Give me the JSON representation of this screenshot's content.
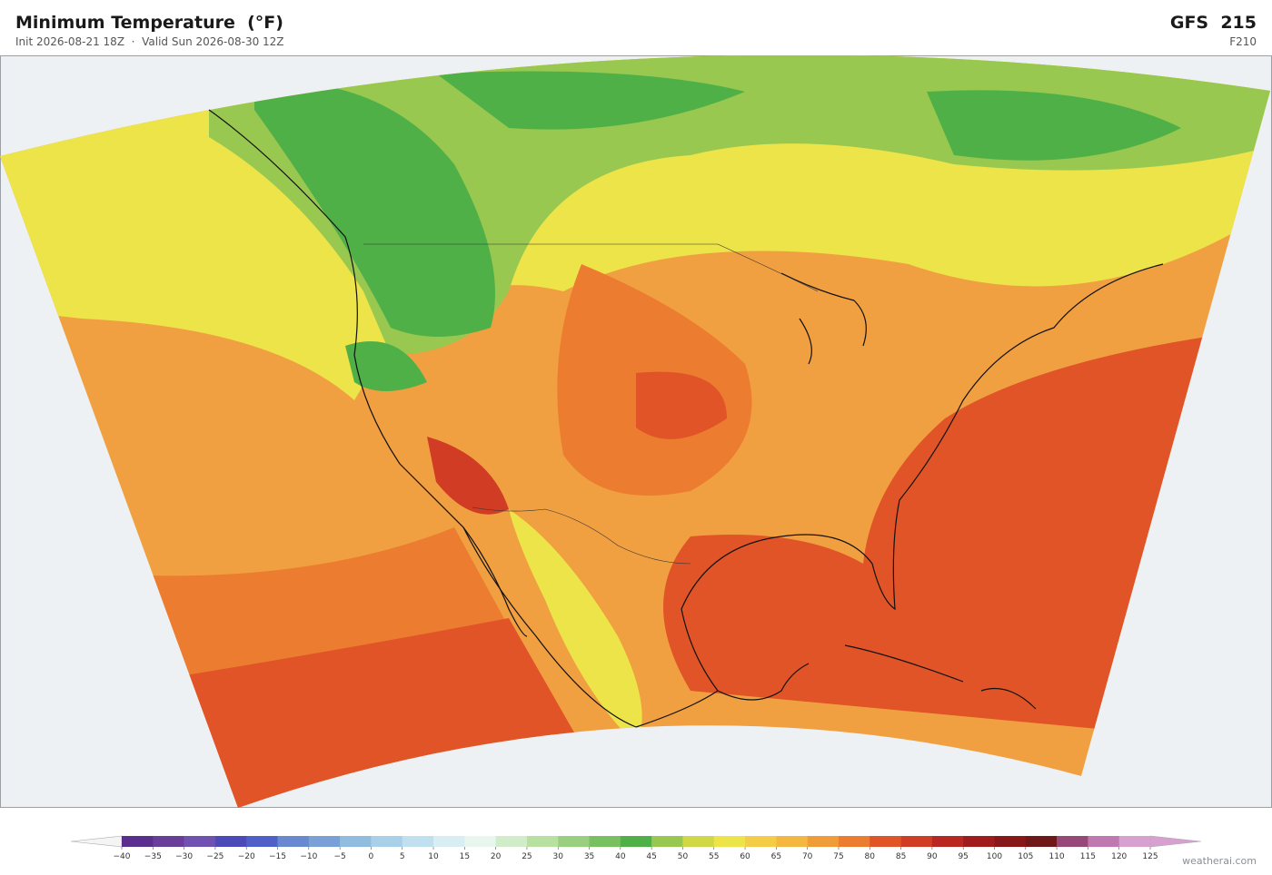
{
  "header": {
    "title": "Minimum Temperature  (°F)",
    "subtitle": "Init 2026-08-21 18Z  ·  Valid Sun 2026-08-30 12Z",
    "model": "GFS  215",
    "forecast_hour": "F210"
  },
  "colorbar": {
    "ticks": [
      {
        "value": -40,
        "label": "−40"
      },
      {
        "value": -35,
        "label": "−35"
      },
      {
        "value": -30,
        "label": "−30"
      },
      {
        "value": -25,
        "label": "−25"
      },
      {
        "value": -20,
        "label": "−20"
      },
      {
        "value": -15,
        "label": "−15"
      },
      {
        "value": -10,
        "label": "−10"
      },
      {
        "value": -5,
        "label": "−5"
      },
      0,
      5,
      10,
      15,
      20,
      25,
      30,
      35,
      40,
      45,
      50,
      55,
      60,
      65,
      70,
      75,
      80,
      85,
      90,
      95,
      100,
      105,
      110,
      115,
      120,
      125
    ],
    "colors": [
      "#5b2d8e",
      "#6a3d9a",
      "#7050b0",
      "#4a4ab8",
      "#4f60c8",
      "#6888d0",
      "#7aa0d8",
      "#90bce0",
      "#a8d0e8",
      "#c0e0f0",
      "#d8eef2",
      "#e8f6ee",
      "#d0ecc8",
      "#b8e0a0",
      "#98d080",
      "#78c060",
      "#50b048",
      "#98c850",
      "#d0d848",
      "#ece448",
      "#f4cc48",
      "#f4b840",
      "#f09c38",
      "#ec7c30",
      "#e05428",
      "#d03c24",
      "#b82820",
      "#a01c1c",
      "#881818",
      "#701818",
      "#984878",
      "#c078b0",
      "#d8a0d0"
    ],
    "under_color": "#f4f4f4",
    "over_color": "#d8a0d0"
  },
  "watermark": "weatherai.com"
}
